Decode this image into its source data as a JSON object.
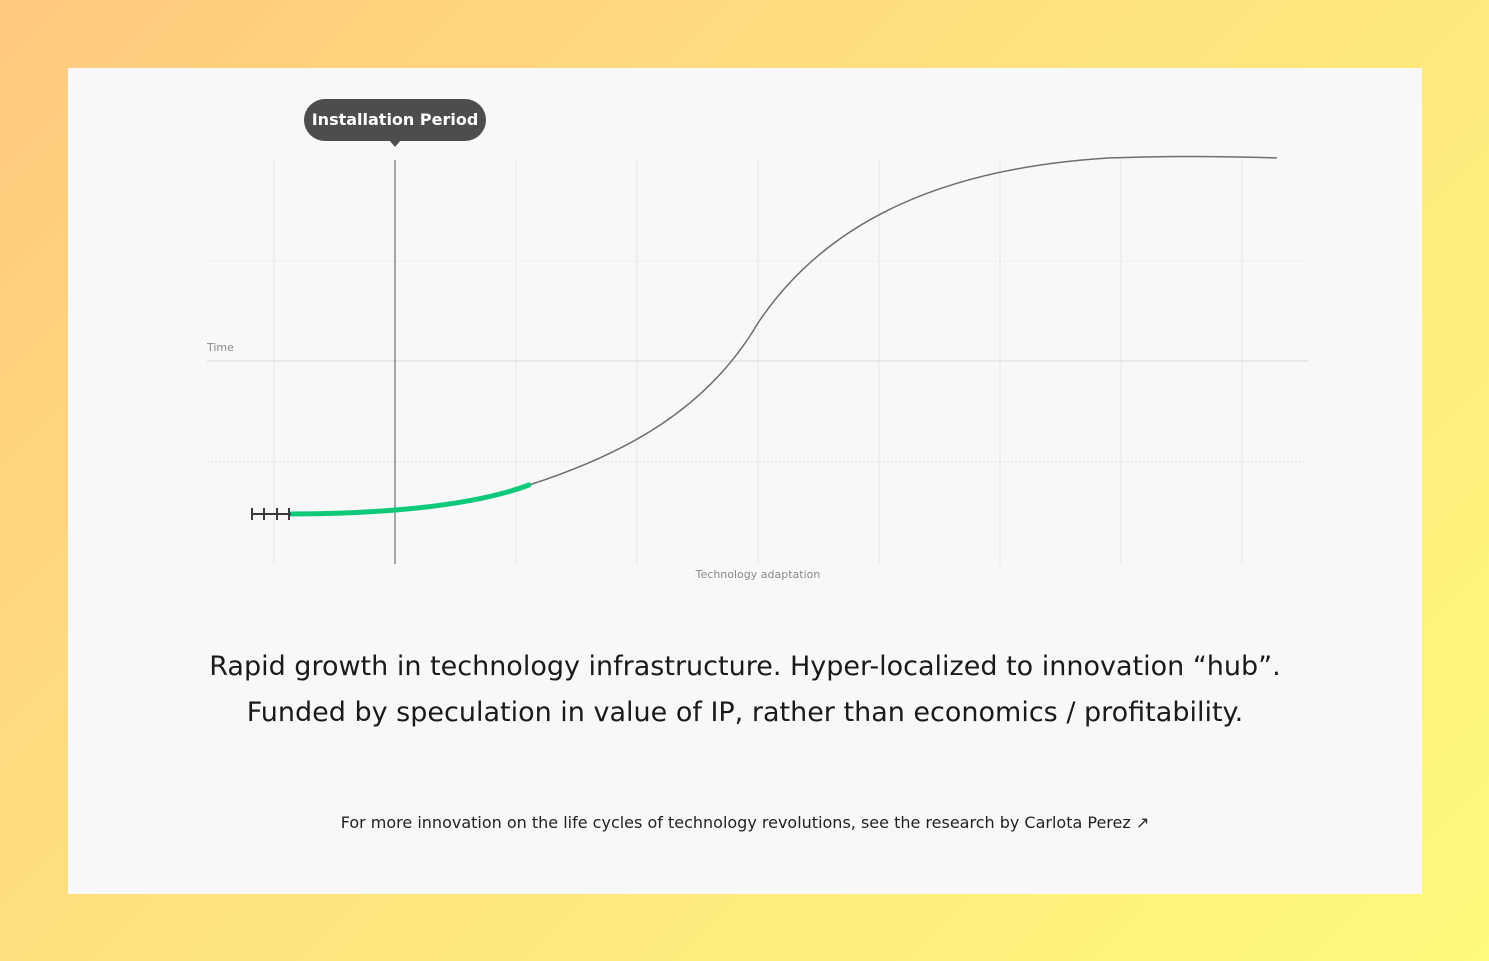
{
  "tooltip": {
    "label": "Installation Period"
  },
  "chart_data": {
    "type": "line",
    "xlabel": "Technology adaptation",
    "ylabel": "Time",
    "highlight_color": "#0fc97a",
    "curve_color": "#6e6e6e"
  },
  "description": "Rapid growth in technology infrastructure. Hyper-localized to innovation “hub”. Funded by speculation in value of IP, rather than economics / profitability.",
  "footer": {
    "text": "For more innovation on the life cycles of technology revolutions, see the research by ",
    "link_label": "Carlota Perez",
    "link_icon": "↗"
  }
}
